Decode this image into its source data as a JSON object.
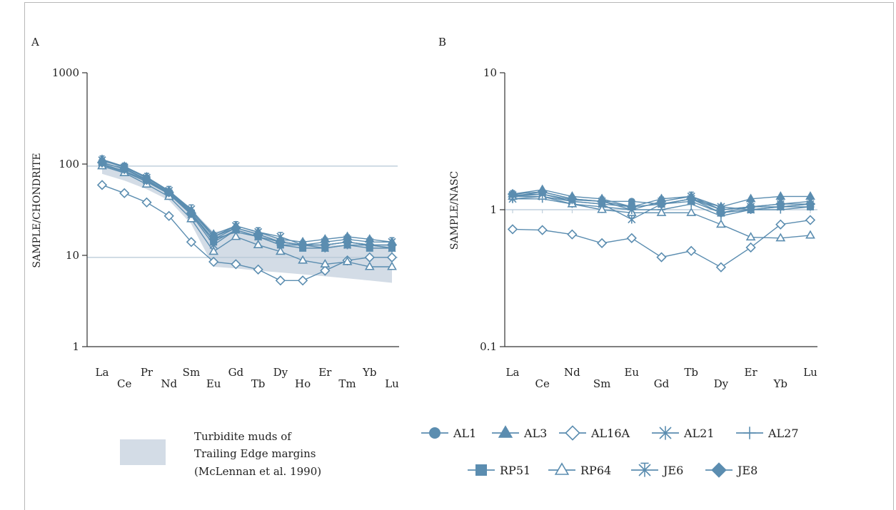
{
  "chart_data": [
    {
      "type": "line",
      "panel_label": "A",
      "ylabel": "SAMPLE/CHONDRITE",
      "y_scale": "log",
      "ylim": [
        1,
        1000
      ],
      "y_ticks": [
        "1",
        "10",
        "100",
        "1000"
      ],
      "categories": [
        "La",
        "Ce",
        "Pr",
        "Nd",
        "Sm",
        "Eu",
        "Gd",
        "Tb",
        "Dy",
        "Ho",
        "Er",
        "Tm",
        "Yb",
        "Lu"
      ],
      "reference_lines": [
        95,
        9.5
      ],
      "band": {
        "upper": [
          115,
          95,
          73,
          52,
          32,
          18,
          20,
          18,
          15,
          13,
          13,
          13,
          13,
          13
        ],
        "lower": [
          78,
          66,
          53,
          40,
          22,
          7.5,
          7.2,
          6.8,
          6.5,
          6.2,
          5.9,
          5.6,
          5.3,
          5.0
        ]
      },
      "series": [
        {
          "name": "AL1",
          "values": [
            108,
            95,
            70,
            50,
            30,
            16,
            20,
            17,
            14,
            13,
            13,
            14,
            13,
            12
          ]
        },
        {
          "name": "AL3",
          "values": [
            112,
            94,
            72,
            51,
            31,
            17,
            21,
            18,
            15,
            14,
            15,
            16,
            15,
            14
          ]
        },
        {
          "name": "AL16A",
          "values": [
            59,
            48,
            38,
            27,
            14,
            8.5,
            8.0,
            7.0,
            5.3,
            5.3,
            6.8,
            8.8,
            9.5,
            9.5
          ]
        },
        {
          "name": "AL21",
          "values": [
            100,
            84,
            66,
            47,
            28,
            13,
            19,
            16,
            14,
            13,
            12,
            13,
            13,
            12
          ]
        },
        {
          "name": "AL27",
          "values": [
            98,
            82,
            64,
            47,
            28,
            15,
            18,
            16,
            13,
            13,
            13,
            14,
            13,
            13
          ]
        },
        {
          "name": "RP51",
          "values": [
            102,
            90,
            68,
            48,
            29,
            14,
            19,
            16,
            13,
            12,
            12,
            13,
            12,
            12
          ]
        },
        {
          "name": "RP64",
          "values": [
            95,
            80,
            60,
            44,
            25,
            11,
            16,
            13,
            11,
            8.8,
            8.0,
            8.5,
            7.5,
            7.5
          ]
        },
        {
          "name": "JE6",
          "values": [
            110,
            92,
            71,
            51,
            32,
            16,
            21,
            18,
            16,
            13,
            14,
            15,
            14,
            14
          ]
        },
        {
          "name": "JE8",
          "values": [
            104,
            88,
            67,
            49,
            29,
            15,
            20,
            17,
            14,
            13,
            13,
            14,
            13,
            13
          ]
        }
      ]
    },
    {
      "type": "line",
      "panel_label": "B",
      "ylabel": "SAMPLE/NASC",
      "y_scale": "log",
      "ylim": [
        0.1,
        10
      ],
      "y_ticks": [
        "0.1",
        "1",
        "10"
      ],
      "categories": [
        "La",
        "Ce",
        "Nd",
        "Sm",
        "Eu",
        "Gd",
        "Tb",
        "Dy",
        "Er",
        "Yb",
        "Lu"
      ],
      "reference_lines": [
        1
      ],
      "series": [
        {
          "name": "AL1",
          "values": [
            1.25,
            1.35,
            1.2,
            1.15,
            1.15,
            1.1,
            1.2,
            1.0,
            1.05,
            1.05,
            1.1
          ]
        },
        {
          "name": "AL3",
          "values": [
            1.3,
            1.4,
            1.25,
            1.2,
            1.05,
            1.2,
            1.25,
            1.05,
            1.2,
            1.25,
            1.25
          ]
        },
        {
          "name": "AL16A",
          "values": [
            0.72,
            0.71,
            0.66,
            0.57,
            0.62,
            0.45,
            0.5,
            0.38,
            0.53,
            0.78,
            0.84
          ]
        },
        {
          "name": "AL21",
          "values": [
            1.2,
            1.25,
            1.15,
            1.1,
            0.85,
            1.1,
            1.2,
            1.05,
            1.0,
            1.05,
            1.1
          ]
        },
        {
          "name": "AL27",
          "values": [
            1.2,
            1.2,
            1.1,
            1.05,
            1.0,
            1.0,
            1.1,
            0.9,
            1.0,
            1.0,
            1.05
          ]
        },
        {
          "name": "RP51",
          "values": [
            1.25,
            1.3,
            1.15,
            1.1,
            1.05,
            1.1,
            1.15,
            0.95,
            1.0,
            1.05,
            1.05
          ]
        },
        {
          "name": "RP64",
          "values": [
            1.25,
            1.25,
            1.1,
            1.0,
            0.95,
            0.95,
            0.95,
            0.78,
            0.63,
            0.62,
            0.65
          ]
        },
        {
          "name": "JE6",
          "values": [
            1.28,
            1.3,
            1.18,
            1.15,
            1.0,
            1.15,
            1.25,
            1.0,
            1.05,
            1.1,
            1.15
          ]
        },
        {
          "name": "JE8",
          "values": [
            1.3,
            1.35,
            1.2,
            1.15,
            1.05,
            1.1,
            1.2,
            0.95,
            1.05,
            1.1,
            1.1
          ]
        }
      ]
    }
  ],
  "legend": {
    "band_text": [
      "Turbidite muds of",
      "Trailing Edge margins",
      "(McLennan et al. 1990)"
    ],
    "series": [
      {
        "name": "AL1",
        "marker": "circle"
      },
      {
        "name": "AL3",
        "marker": "triangle"
      },
      {
        "name": "AL16A",
        "marker": "diamond-open"
      },
      {
        "name": "AL21",
        "marker": "asterisk"
      },
      {
        "name": "AL27",
        "marker": "plus"
      },
      {
        "name": "RP51",
        "marker": "square"
      },
      {
        "name": "RP64",
        "marker": "triangle-open"
      },
      {
        "name": "JE6",
        "marker": "asterisk-bar"
      },
      {
        "name": "JE8",
        "marker": "diamond"
      }
    ]
  },
  "colors": {
    "series": "#5b8db0",
    "band": "#d3dce6",
    "reference_line": "#b5c7d6",
    "axis": "#333333"
  }
}
